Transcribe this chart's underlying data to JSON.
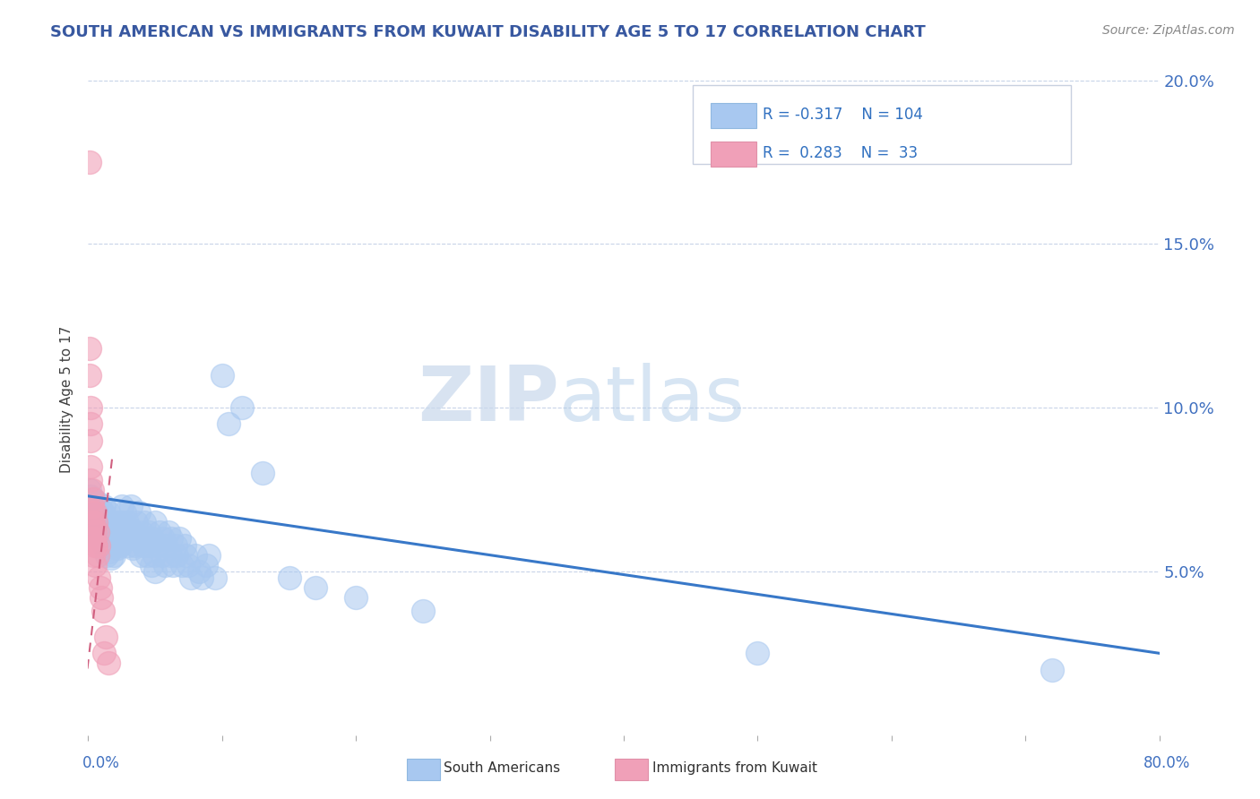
{
  "title": "SOUTH AMERICAN VS IMMIGRANTS FROM KUWAIT DISABILITY AGE 5 TO 17 CORRELATION CHART",
  "source": "Source: ZipAtlas.com",
  "ylabel": "Disability Age 5 to 17",
  "xmin": 0.0,
  "xmax": 0.8,
  "ymin": 0.0,
  "ymax": 0.205,
  "ytick_vals": [
    0.05,
    0.1,
    0.15,
    0.2
  ],
  "ytick_labels": [
    "5.0%",
    "10.0%",
    "15.0%",
    "20.0%"
  ],
  "r_blue": -0.317,
  "n_blue": 104,
  "r_pink": 0.283,
  "n_pink": 33,
  "blue_color": "#a8c8f0",
  "pink_color": "#f0a0b8",
  "trendline_blue_color": "#3878c8",
  "trendline_pink_color": "#d06080",
  "title_color": "#3858a0",
  "axis_color": "#4070c0",
  "legend_text_color": "#3070c0",
  "watermark_zip": "ZIP",
  "watermark_atlas": "atlas",
  "blue_trendline_x": [
    0.0,
    0.8
  ],
  "blue_trendline_y": [
    0.073,
    0.025
  ],
  "pink_trendline_x": [
    -0.005,
    0.018
  ],
  "pink_trendline_y": [
    0.005,
    0.085
  ],
  "blue_scatter": [
    [
      0.001,
      0.075
    ],
    [
      0.002,
      0.073
    ],
    [
      0.003,
      0.07
    ],
    [
      0.003,
      0.065
    ],
    [
      0.004,
      0.068
    ],
    [
      0.004,
      0.072
    ],
    [
      0.005,
      0.066
    ],
    [
      0.005,
      0.07
    ],
    [
      0.006,
      0.063
    ],
    [
      0.006,
      0.068
    ],
    [
      0.007,
      0.065
    ],
    [
      0.007,
      0.071
    ],
    [
      0.008,
      0.06
    ],
    [
      0.008,
      0.067
    ],
    [
      0.009,
      0.063
    ],
    [
      0.009,
      0.069
    ],
    [
      0.01,
      0.065
    ],
    [
      0.01,
      0.06
    ],
    [
      0.011,
      0.068
    ],
    [
      0.011,
      0.062
    ],
    [
      0.012,
      0.07
    ],
    [
      0.012,
      0.058
    ],
    [
      0.013,
      0.065
    ],
    [
      0.013,
      0.06
    ],
    [
      0.014,
      0.062
    ],
    [
      0.014,
      0.055
    ],
    [
      0.015,
      0.068
    ],
    [
      0.015,
      0.058
    ],
    [
      0.016,
      0.063
    ],
    [
      0.016,
      0.056
    ],
    [
      0.017,
      0.06
    ],
    [
      0.017,
      0.054
    ],
    [
      0.018,
      0.065
    ],
    [
      0.018,
      0.058
    ],
    [
      0.019,
      0.061
    ],
    [
      0.019,
      0.055
    ],
    [
      0.02,
      0.063
    ],
    [
      0.021,
      0.06
    ],
    [
      0.022,
      0.057
    ],
    [
      0.022,
      0.065
    ],
    [
      0.023,
      0.062
    ],
    [
      0.024,
      0.058
    ],
    [
      0.025,
      0.065
    ],
    [
      0.025,
      0.07
    ],
    [
      0.026,
      0.062
    ],
    [
      0.027,
      0.068
    ],
    [
      0.028,
      0.06
    ],
    [
      0.029,
      0.065
    ],
    [
      0.03,
      0.058
    ],
    [
      0.031,
      0.063
    ],
    [
      0.032,
      0.07
    ],
    [
      0.033,
      0.057
    ],
    [
      0.034,
      0.062
    ],
    [
      0.035,
      0.058
    ],
    [
      0.036,
      0.065
    ],
    [
      0.037,
      0.06
    ],
    [
      0.038,
      0.068
    ],
    [
      0.039,
      0.055
    ],
    [
      0.04,
      0.062
    ],
    [
      0.041,
      0.058
    ],
    [
      0.042,
      0.065
    ],
    [
      0.043,
      0.06
    ],
    [
      0.044,
      0.055
    ],
    [
      0.045,
      0.062
    ],
    [
      0.046,
      0.058
    ],
    [
      0.047,
      0.052
    ],
    [
      0.048,
      0.06
    ],
    [
      0.049,
      0.055
    ],
    [
      0.05,
      0.05
    ],
    [
      0.05,
      0.065
    ],
    [
      0.052,
      0.058
    ],
    [
      0.053,
      0.062
    ],
    [
      0.055,
      0.055
    ],
    [
      0.056,
      0.06
    ],
    [
      0.057,
      0.052
    ],
    [
      0.058,
      0.058
    ],
    [
      0.06,
      0.062
    ],
    [
      0.061,
      0.055
    ],
    [
      0.062,
      0.06
    ],
    [
      0.063,
      0.052
    ],
    [
      0.065,
      0.058
    ],
    [
      0.066,
      0.055
    ],
    [
      0.068,
      0.06
    ],
    [
      0.07,
      0.052
    ],
    [
      0.072,
      0.058
    ],
    [
      0.073,
      0.055
    ],
    [
      0.075,
      0.052
    ],
    [
      0.077,
      0.048
    ],
    [
      0.08,
      0.055
    ],
    [
      0.083,
      0.05
    ],
    [
      0.085,
      0.048
    ],
    [
      0.088,
      0.052
    ],
    [
      0.09,
      0.055
    ],
    [
      0.095,
      0.048
    ],
    [
      0.1,
      0.11
    ],
    [
      0.105,
      0.095
    ],
    [
      0.115,
      0.1
    ],
    [
      0.13,
      0.08
    ],
    [
      0.15,
      0.048
    ],
    [
      0.17,
      0.045
    ],
    [
      0.2,
      0.042
    ],
    [
      0.25,
      0.038
    ],
    [
      0.5,
      0.025
    ],
    [
      0.72,
      0.02
    ]
  ],
  "pink_scatter": [
    [
      0.001,
      0.175
    ],
    [
      0.001,
      0.118
    ],
    [
      0.001,
      0.11
    ],
    [
      0.002,
      0.1
    ],
    [
      0.002,
      0.095
    ],
    [
      0.002,
      0.09
    ],
    [
      0.002,
      0.082
    ],
    [
      0.002,
      0.078
    ],
    [
      0.003,
      0.075
    ],
    [
      0.003,
      0.07
    ],
    [
      0.003,
      0.068
    ],
    [
      0.003,
      0.065
    ],
    [
      0.003,
      0.06
    ],
    [
      0.004,
      0.072
    ],
    [
      0.004,
      0.065
    ],
    [
      0.004,
      0.06
    ],
    [
      0.004,
      0.055
    ],
    [
      0.005,
      0.068
    ],
    [
      0.005,
      0.062
    ],
    [
      0.005,
      0.058
    ],
    [
      0.005,
      0.052
    ],
    [
      0.006,
      0.065
    ],
    [
      0.006,
      0.058
    ],
    [
      0.007,
      0.062
    ],
    [
      0.007,
      0.055
    ],
    [
      0.008,
      0.058
    ],
    [
      0.008,
      0.048
    ],
    [
      0.009,
      0.045
    ],
    [
      0.01,
      0.042
    ],
    [
      0.011,
      0.038
    ],
    [
      0.012,
      0.025
    ],
    [
      0.013,
      0.03
    ],
    [
      0.015,
      0.022
    ]
  ]
}
